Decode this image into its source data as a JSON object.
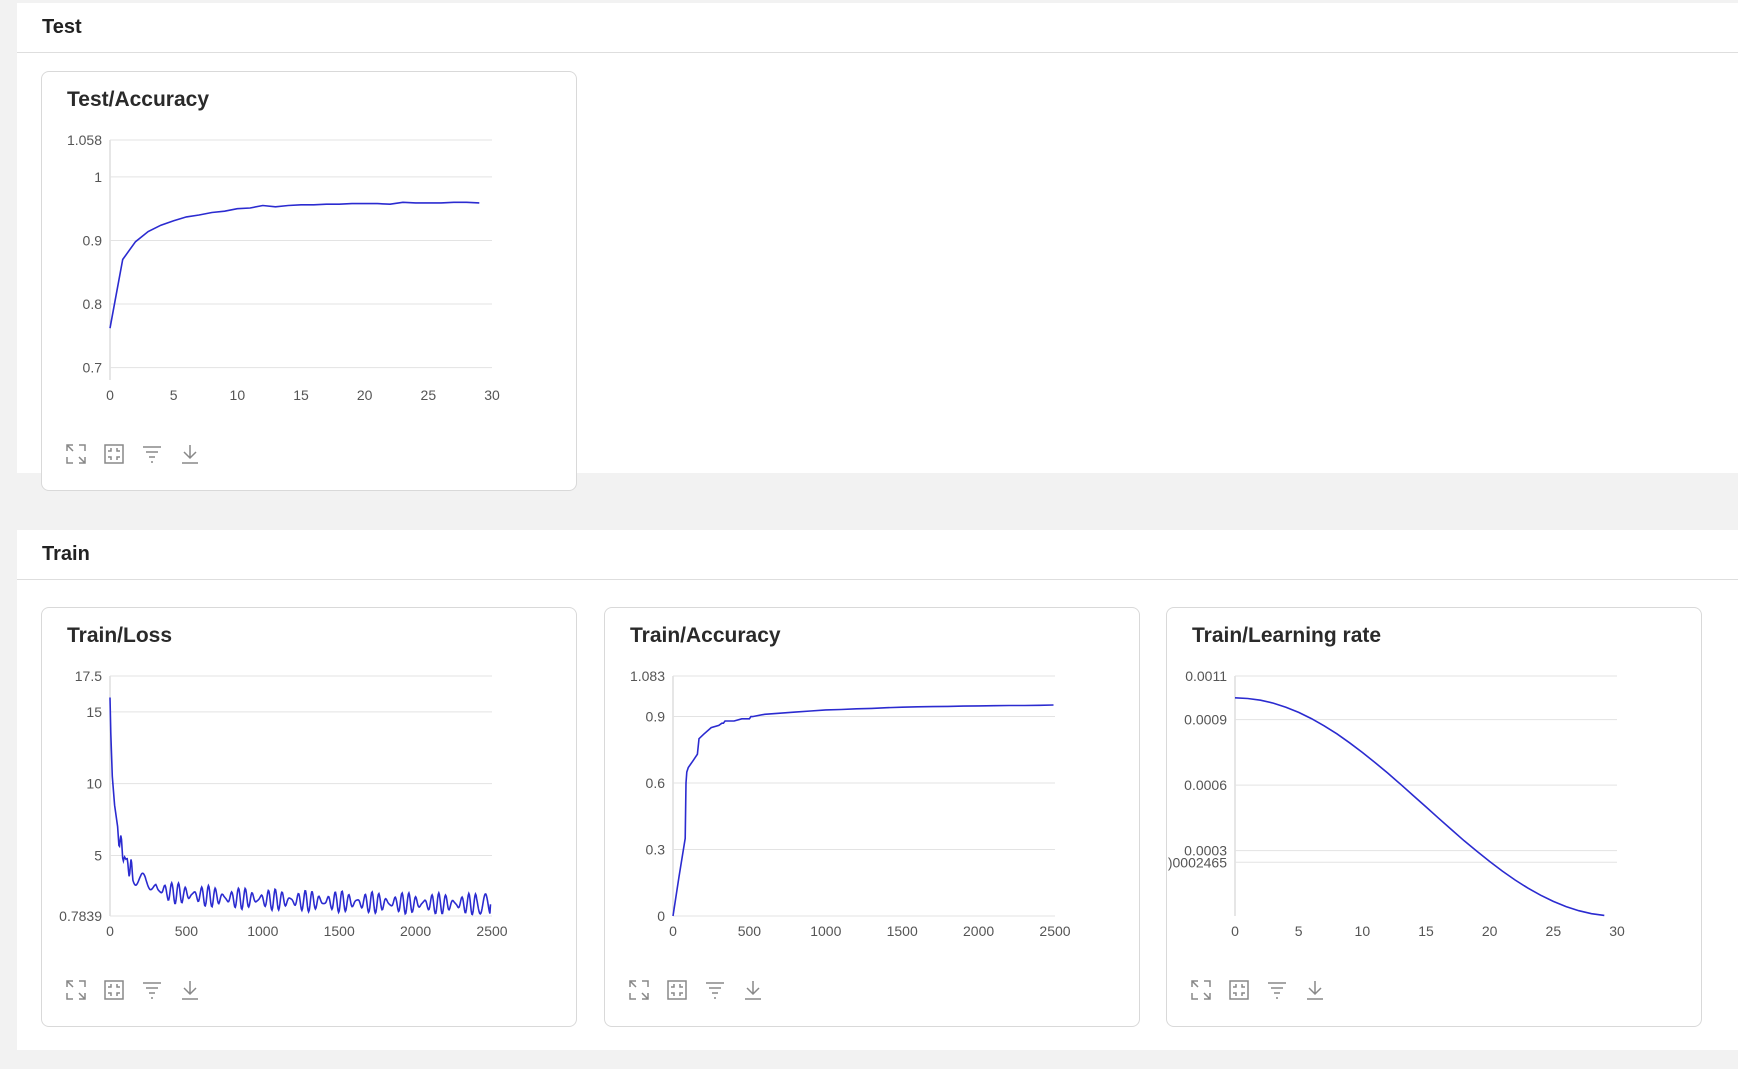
{
  "sections": [
    {
      "title": "Test"
    },
    {
      "title": "Train"
    }
  ],
  "toolbar_icons": [
    "expand-icon",
    "fit-icon",
    "filter-icon",
    "download-icon"
  ],
  "line_color": "#2b2bd0",
  "chart_data": [
    {
      "id": "test-accuracy",
      "type": "line",
      "title": "Test/Accuracy",
      "xlim": [
        0,
        30
      ],
      "ylim": [
        0.6805,
        1.058
      ],
      "xticks": [
        "0",
        "5",
        "10",
        "15",
        "20",
        "25",
        "30"
      ],
      "yticks": [
        "0.7",
        "0.8",
        "0.9",
        "1",
        "1.058"
      ],
      "series": [
        {
          "x": [
            0,
            1,
            2,
            3,
            4,
            5,
            6,
            7,
            8,
            9,
            10,
            11,
            12,
            13,
            14,
            15,
            16,
            17,
            18,
            19,
            20,
            21,
            22,
            23,
            24,
            25,
            26,
            27,
            28,
            29
          ],
          "y": [
            0.762,
            0.87,
            0.898,
            0.914,
            0.924,
            0.931,
            0.937,
            0.94,
            0.944,
            0.946,
            0.95,
            0.951,
            0.955,
            0.953,
            0.955,
            0.956,
            0.956,
            0.957,
            0.957,
            0.958,
            0.958,
            0.958,
            0.957,
            0.96,
            0.959,
            0.959,
            0.959,
            0.96,
            0.96,
            0.959
          ]
        }
      ]
    },
    {
      "id": "train-loss",
      "type": "line",
      "title": "Train/Loss",
      "xlim": [
        0,
        2500
      ],
      "ylim": [
        0.7839,
        17.5
      ],
      "xticks": [
        "0",
        "500",
        "1000",
        "1500",
        "2000",
        "2500"
      ],
      "yticks": [
        "0.7839",
        "5",
        "10",
        "15",
        "17.5"
      ],
      "series": [
        {
          "x": [
            0,
            5,
            15,
            30,
            50,
            75,
            100,
            125,
            150,
            200,
            250,
            300,
            400,
            500,
            600,
            700,
            800,
            900,
            1000,
            1100,
            1200,
            1300,
            1400,
            1500,
            1600,
            1700,
            1800,
            1900,
            2000,
            2100,
            2200,
            2300,
            2400,
            2490
          ],
          "y": [
            16.0,
            13.5,
            10.5,
            8.5,
            6.8,
            5.5,
            4.7,
            4.2,
            3.8,
            3.2,
            2.9,
            2.7,
            2.4,
            2.3,
            2.2,
            2.1,
            2.0,
            2.0,
            1.95,
            1.9,
            1.85,
            1.82,
            1.8,
            1.78,
            1.75,
            1.72,
            1.7,
            1.68,
            1.66,
            1.65,
            1.64,
            1.63,
            1.62,
            1.6
          ]
        }
      ]
    },
    {
      "id": "train-accuracy",
      "type": "line",
      "title": "Train/Accuracy",
      "xlim": [
        0,
        2500
      ],
      "ylim": [
        0,
        1.083
      ],
      "xticks": [
        "0",
        "500",
        "1000",
        "1500",
        "2000",
        "2500"
      ],
      "yticks": [
        "0",
        "0.3",
        "0.6",
        "0.9",
        "1.083"
      ],
      "series": [
        {
          "x": [
            0,
            40,
            80,
            85,
            90,
            100,
            130,
            160,
            170,
            200,
            250,
            300,
            320,
            330,
            340,
            400,
            450,
            500,
            510,
            520,
            600,
            700,
            800,
            900,
            1000,
            1100,
            1200,
            1300,
            1400,
            1500,
            1600,
            1700,
            1800,
            1900,
            2000,
            2100,
            2200,
            2300,
            2400,
            2490
          ],
          "y": [
            0.0,
            0.18,
            0.35,
            0.6,
            0.65,
            0.67,
            0.7,
            0.73,
            0.8,
            0.82,
            0.85,
            0.86,
            0.87,
            0.87,
            0.88,
            0.88,
            0.89,
            0.89,
            0.9,
            0.9,
            0.91,
            0.915,
            0.92,
            0.925,
            0.93,
            0.932,
            0.935,
            0.937,
            0.94,
            0.942,
            0.944,
            0.945,
            0.946,
            0.947,
            0.948,
            0.949,
            0.95,
            0.95,
            0.951,
            0.952
          ]
        }
      ]
    },
    {
      "id": "train-lr",
      "type": "line",
      "title": "Train/Learning rate",
      "xlim": [
        0,
        30
      ],
      "ylim": [
        2.465e-07,
        0.0011
      ],
      "xticks": [
        "0",
        "5",
        "10",
        "15",
        "20",
        "25",
        "30"
      ],
      "yticks": [
        ")0002465",
        "0.0003",
        "0.0006",
        "0.0009",
        "0.0011"
      ],
      "series": [
        {
          "x": [
            0,
            1,
            2,
            3,
            4,
            5,
            6,
            7,
            8,
            9,
            10,
            11,
            12,
            13,
            14,
            15,
            16,
            17,
            18,
            19,
            20,
            21,
            22,
            23,
            24,
            25,
            26,
            27,
            28,
            29
          ],
          "y": [
            0.001,
            0.000997,
            0.000989,
            0.000976,
            0.000957,
            0.000933,
            0.000905,
            0.000872,
            0.000835,
            0.000794,
            0.00075,
            0.000703,
            0.000655,
            0.000604,
            0.000552,
            0.0005,
            0.000448,
            0.000396,
            0.000345,
            0.000297,
            0.00025,
            0.000206,
            0.000165,
            0.000128,
            9.55e-05,
            6.7e-05,
            4.32e-05,
            2.45e-05,
            1.1e-05,
            3e-06
          ]
        }
      ]
    }
  ]
}
